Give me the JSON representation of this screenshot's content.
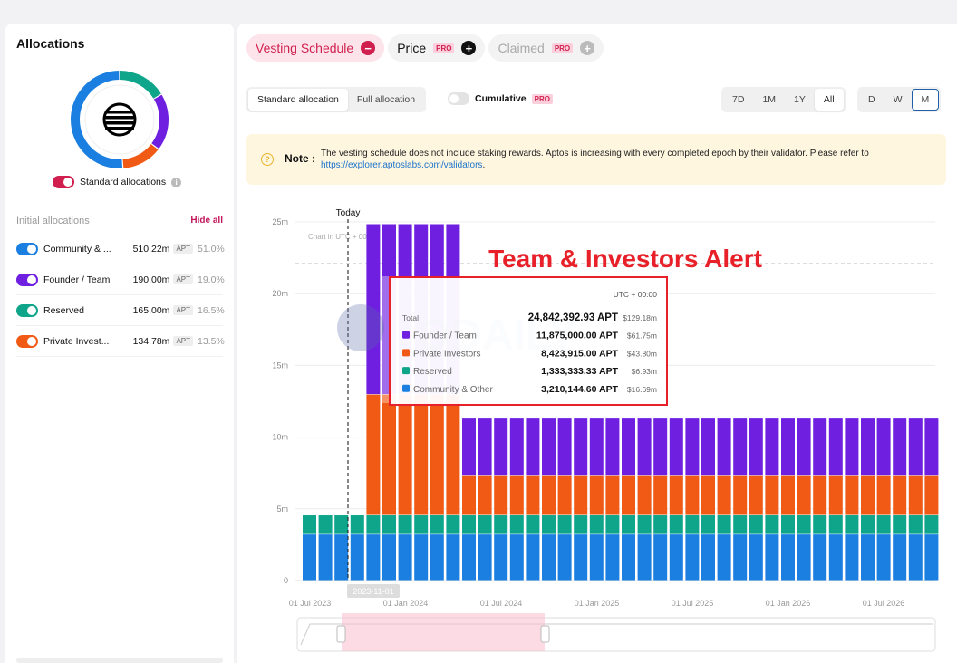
{
  "sidebar": {
    "title": "Allocations",
    "standard_toggle_label": "Standard allocations",
    "info_icon": "i",
    "initial_label": "Initial allocations",
    "hide_all": "Hide all",
    "items": [
      {
        "name": "Community & ...",
        "amount": "510.22m",
        "unit": "APT",
        "pct": "51.0%",
        "color": "#1a7fe0"
      },
      {
        "name": "Founder / Team",
        "amount": "190.00m",
        "unit": "APT",
        "pct": "19.0%",
        "color": "#6e1fe0"
      },
      {
        "name": "Reserved",
        "amount": "165.00m",
        "unit": "APT",
        "pct": "16.5%",
        "color": "#0fa58a"
      },
      {
        "name": "Private Invest...",
        "amount": "134.78m",
        "unit": "APT",
        "pct": "13.5%",
        "color": "#f05a14"
      }
    ],
    "donut_segments": [
      51.0,
      19.0,
      16.5,
      13.5
    ]
  },
  "tabs": [
    {
      "label": "Vesting Schedule",
      "icon": "−",
      "pro": ""
    },
    {
      "label": "Price",
      "icon": "+",
      "pro": "PRO"
    },
    {
      "label": "Claimed",
      "icon": "+",
      "pro": "PRO"
    }
  ],
  "controls": {
    "allocation_options": [
      "Standard allocation",
      "Full allocation"
    ],
    "cumulative_label": "Cumulative",
    "cumulative_pro": "PRO",
    "ranges": [
      "7D",
      "1M",
      "1Y",
      "All"
    ],
    "intervals": [
      "D",
      "W",
      "M"
    ]
  },
  "note": {
    "label": "Note :",
    "text": "The vesting schedule does not include staking rewards. Aptos is increasing with every completed epoch by their validator. Please refer to",
    "link": "https://explorer.aptoslabs.com/validators",
    "link_suffix": "."
  },
  "alert_title": "Team & Investors Alert",
  "watermark": "ODAILY",
  "tooltip": {
    "tz": "UTC + 00:00",
    "rows": [
      {
        "label": "Total",
        "value": "24,842,392.93 APT",
        "usd": "$129.18m",
        "color": ""
      },
      {
        "label": "Founder / Team",
        "value": "11,875,000.00 APT",
        "usd": "$61.75m",
        "color": "#6e1fe0"
      },
      {
        "label": "Private Investors",
        "value": "8,423,915.00 APT",
        "usd": "$43.80m",
        "color": "#f05a14"
      },
      {
        "label": "Reserved",
        "value": "1,333,333.33 APT",
        "usd": "$6.93m",
        "color": "#0fa58a"
      },
      {
        "label": "Community & Other",
        "value": "3,210,144.60 APT",
        "usd": "$16.69m",
        "color": "#1a7fe0"
      }
    ]
  },
  "chart_data": {
    "type": "bar",
    "stacked": true,
    "chart_note": "Chart in UTC + 00:00",
    "today_label": "Today",
    "hover_date": "2023-11-01",
    "y_ticks": [
      "0",
      "5m",
      "10m",
      "15m",
      "20m",
      "25m"
    ],
    "ylim": [
      0,
      25000000
    ],
    "x_ticks": [
      "01 Jul 2023",
      "01 Jan 2024",
      "01 Jul 2024",
      "01 Jan 2025",
      "01 Jul 2025",
      "01 Jan 2026",
      "01 Jul 2026"
    ],
    "x_start": "2023-07",
    "series_colors": {
      "community": "#1a7fe0",
      "reserved": "#0fa58a",
      "investors": "#f05a14",
      "team": "#6e1fe0"
    },
    "months": [
      {
        "community": 3210144.6,
        "reserved": 1333333.33,
        "investors": 0,
        "team": 0
      },
      {
        "community": 3210144.6,
        "reserved": 1333333.33,
        "investors": 0,
        "team": 0
      },
      {
        "community": 3210144.6,
        "reserved": 1333333.33,
        "investors": 0,
        "team": 0
      },
      {
        "community": 3210144.6,
        "reserved": 1333333.33,
        "investors": 0,
        "team": 0
      },
      {
        "community": 3210144.6,
        "reserved": 1333333.33,
        "investors": 8423915,
        "team": 11875000
      },
      {
        "community": 3210144.6,
        "reserved": 1333333.33,
        "investors": 8423915,
        "team": 11875000
      },
      {
        "community": 3210144.6,
        "reserved": 1333333.33,
        "investors": 8423915,
        "team": 11875000
      },
      {
        "community": 3210144.6,
        "reserved": 1333333.33,
        "investors": 8423915,
        "team": 11875000
      },
      {
        "community": 3210144.6,
        "reserved": 1333333.33,
        "investors": 8423915,
        "team": 11875000
      },
      {
        "community": 3210144.6,
        "reserved": 1333333.33,
        "investors": 8423915,
        "team": 11875000
      },
      {
        "community": 3210144.6,
        "reserved": 1333333.33,
        "investors": 2800000,
        "team": 3950000
      },
      {
        "community": 3210144.6,
        "reserved": 1333333.33,
        "investors": 2800000,
        "team": 3950000
      },
      {
        "community": 3210144.6,
        "reserved": 1333333.33,
        "investors": 2800000,
        "team": 3950000
      },
      {
        "community": 3210144.6,
        "reserved": 1333333.33,
        "investors": 2800000,
        "team": 3950000
      },
      {
        "community": 3210144.6,
        "reserved": 1333333.33,
        "investors": 2800000,
        "team": 3950000
      },
      {
        "community": 3210144.6,
        "reserved": 1333333.33,
        "investors": 2800000,
        "team": 3950000
      },
      {
        "community": 3210144.6,
        "reserved": 1333333.33,
        "investors": 2800000,
        "team": 3950000
      },
      {
        "community": 3210144.6,
        "reserved": 1333333.33,
        "investors": 2800000,
        "team": 3950000
      },
      {
        "community": 3210144.6,
        "reserved": 1333333.33,
        "investors": 2800000,
        "team": 3950000
      },
      {
        "community": 3210144.6,
        "reserved": 1333333.33,
        "investors": 2800000,
        "team": 3950000
      },
      {
        "community": 3210144.6,
        "reserved": 1333333.33,
        "investors": 2800000,
        "team": 3950000
      },
      {
        "community": 3210144.6,
        "reserved": 1333333.33,
        "investors": 2800000,
        "team": 3950000
      },
      {
        "community": 3210144.6,
        "reserved": 1333333.33,
        "investors": 2800000,
        "team": 3950000
      },
      {
        "community": 3210144.6,
        "reserved": 1333333.33,
        "investors": 2800000,
        "team": 3950000
      },
      {
        "community": 3210144.6,
        "reserved": 1333333.33,
        "investors": 2800000,
        "team": 3950000
      },
      {
        "community": 3210144.6,
        "reserved": 1333333.33,
        "investors": 2800000,
        "team": 3950000
      },
      {
        "community": 3210144.6,
        "reserved": 1333333.33,
        "investors": 2800000,
        "team": 3950000
      },
      {
        "community": 3210144.6,
        "reserved": 1333333.33,
        "investors": 2800000,
        "team": 3950000
      },
      {
        "community": 3210144.6,
        "reserved": 1333333.33,
        "investors": 2800000,
        "team": 3950000
      },
      {
        "community": 3210144.6,
        "reserved": 1333333.33,
        "investors": 2800000,
        "team": 3950000
      },
      {
        "community": 3210144.6,
        "reserved": 1333333.33,
        "investors": 2800000,
        "team": 3950000
      },
      {
        "community": 3210144.6,
        "reserved": 1333333.33,
        "investors": 2800000,
        "team": 3950000
      },
      {
        "community": 3210144.6,
        "reserved": 1333333.33,
        "investors": 2800000,
        "team": 3950000
      },
      {
        "community": 3210144.6,
        "reserved": 1333333.33,
        "investors": 2800000,
        "team": 3950000
      },
      {
        "community": 3210144.6,
        "reserved": 1333333.33,
        "investors": 2800000,
        "team": 3950000
      },
      {
        "community": 3210144.6,
        "reserved": 1333333.33,
        "investors": 2800000,
        "team": 3950000
      },
      {
        "community": 3210144.6,
        "reserved": 1333333.33,
        "investors": 2800000,
        "team": 3950000
      },
      {
        "community": 3210144.6,
        "reserved": 1333333.33,
        "investors": 2800000,
        "team": 3950000
      },
      {
        "community": 3210144.6,
        "reserved": 1333333.33,
        "investors": 2800000,
        "team": 3950000
      },
      {
        "community": 3210144.6,
        "reserved": 1333333.33,
        "investors": 2800000,
        "team": 3950000
      }
    ]
  }
}
